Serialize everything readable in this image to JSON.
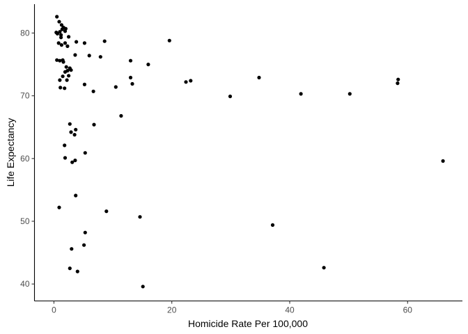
{
  "chart_data": {
    "type": "scatter",
    "title": "",
    "xlabel": "Homicide Rate Per 100,000",
    "ylabel": "Life Expectancy",
    "xlim": [
      -3.3,
      69.3
    ],
    "ylim": [
      37.3,
      84.6
    ],
    "xticks": [
      0,
      20,
      40,
      60
    ],
    "yticks": [
      40,
      50,
      60,
      70,
      80
    ],
    "grid": false,
    "legend": "none",
    "point_color": "#000000",
    "points": [
      [
        0.5,
        82.6
      ],
      [
        0.9,
        81.8
      ],
      [
        1.3,
        81.3
      ],
      [
        1.6,
        80.9
      ],
      [
        1.4,
        80.6
      ],
      [
        2.0,
        80.7
      ],
      [
        0.4,
        80.1
      ],
      [
        0.6,
        79.9
      ],
      [
        1.0,
        80.2
      ],
      [
        1.2,
        79.7
      ],
      [
        1.9,
        80.3
      ],
      [
        2.5,
        79.4
      ],
      [
        1.2,
        79.3
      ],
      [
        0.8,
        78.4
      ],
      [
        1.3,
        78.1
      ],
      [
        1.9,
        78.4
      ],
      [
        2.3,
        77.9
      ],
      [
        3.8,
        78.6
      ],
      [
        5.2,
        78.4
      ],
      [
        8.6,
        78.7
      ],
      [
        19.6,
        78.8
      ],
      [
        3.6,
        76.5
      ],
      [
        6.0,
        76.4
      ],
      [
        7.9,
        76.2
      ],
      [
        0.5,
        75.7
      ],
      [
        1.0,
        75.6
      ],
      [
        1.5,
        75.7
      ],
      [
        1.6,
        75.4
      ],
      [
        13.0,
        75.6
      ],
      [
        16.0,
        75.0
      ],
      [
        2.1,
        74.6
      ],
      [
        2.7,
        74.4
      ],
      [
        2.3,
        74.0
      ],
      [
        2.9,
        74.1
      ],
      [
        1.9,
        73.8
      ],
      [
        1.5,
        73.1
      ],
      [
        2.5,
        73.2
      ],
      [
        1.0,
        72.5
      ],
      [
        2.2,
        72.5
      ],
      [
        13.0,
        72.9
      ],
      [
        22.4,
        72.2
      ],
      [
        23.2,
        72.4
      ],
      [
        34.8,
        72.9
      ],
      [
        58.4,
        72.6
      ],
      [
        58.3,
        72.0
      ],
      [
        1.1,
        71.3
      ],
      [
        1.8,
        71.2
      ],
      [
        5.2,
        71.8
      ],
      [
        10.5,
        71.4
      ],
      [
        13.3,
        71.9
      ],
      [
        6.7,
        70.7
      ],
      [
        41.9,
        70.3
      ],
      [
        50.2,
        70.3
      ],
      [
        29.9,
        69.9
      ],
      [
        11.4,
        66.8
      ],
      [
        2.7,
        65.5
      ],
      [
        6.8,
        65.4
      ],
      [
        3.7,
        64.6
      ],
      [
        2.9,
        64.2
      ],
      [
        3.5,
        63.8
      ],
      [
        1.8,
        62.1
      ],
      [
        5.3,
        60.9
      ],
      [
        1.9,
        60.1
      ],
      [
        3.6,
        59.7
      ],
      [
        3.1,
        59.4
      ],
      [
        66.0,
        59.6
      ],
      [
        3.7,
        54.1
      ],
      [
        0.9,
        52.2
      ],
      [
        8.9,
        51.6
      ],
      [
        14.6,
        50.7
      ],
      [
        37.1,
        49.4
      ],
      [
        5.3,
        48.2
      ],
      [
        5.1,
        46.2
      ],
      [
        3.0,
        45.6
      ],
      [
        2.7,
        42.5
      ],
      [
        45.8,
        42.6
      ],
      [
        4.0,
        42.0
      ],
      [
        15.1,
        39.6
      ]
    ]
  }
}
